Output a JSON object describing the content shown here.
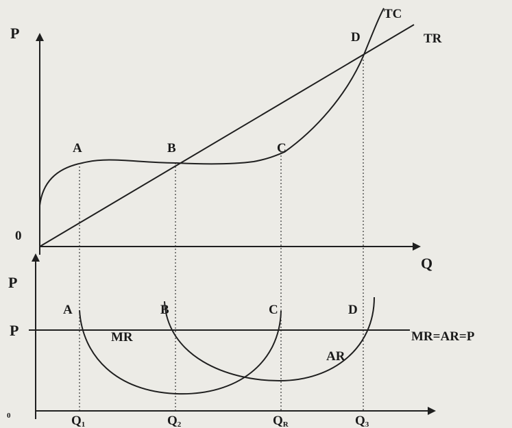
{
  "upper_panel": {
    "y_axis_label": "P",
    "x_axis_label": "Q",
    "origin_label": "0",
    "curves": {
      "tc": "TC",
      "tr": "TR"
    },
    "points": {
      "a": "A",
      "b": "B",
      "c": "C",
      "d": "D"
    }
  },
  "lower_panel": {
    "y_axis_label": "P",
    "price_label": "P",
    "origin_label": "0",
    "line_label": "MR=AR=P",
    "curves": {
      "mr": "MR",
      "ar": "AR"
    },
    "points": {
      "a": "A",
      "b": "B",
      "c": "C",
      "d": "D"
    },
    "quantities": [
      {
        "main": "Q",
        "sub": "1"
      },
      {
        "main": "Q",
        "sub": "2"
      },
      {
        "main": "Q",
        "sub": "R"
      },
      {
        "main": "Q",
        "sub": "3"
      }
    ]
  },
  "colors": {
    "ink": "#1f1f1f",
    "paper": "#ecebe6"
  }
}
